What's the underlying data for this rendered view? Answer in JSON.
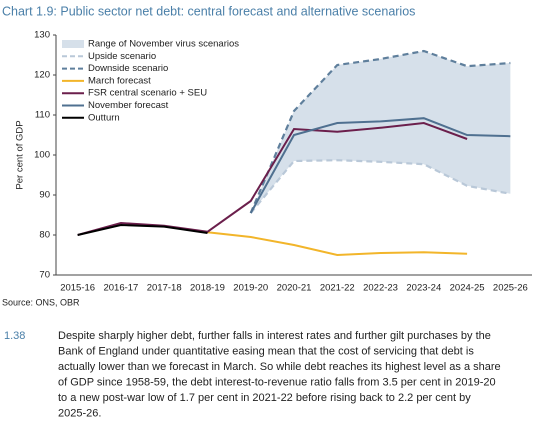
{
  "chart_data": {
    "type": "line",
    "title": "Chart 1.9: Public sector net debt: central forecast and alternative scenarios",
    "y_label": "Per cent of GDP",
    "categories": [
      "2015-16",
      "2016-17",
      "2017-18",
      "2018-19",
      "2019-20",
      "2020-21",
      "2021-22",
      "2022-23",
      "2023-24",
      "2024-25",
      "2025-26"
    ],
    "ylim": [
      70,
      130
    ],
    "yticks": [
      70,
      80,
      90,
      100,
      110,
      120,
      130
    ],
    "series": [
      {
        "name": "Range of November virus scenarios",
        "color": "#d6e0ea"
      },
      {
        "name": "Upside scenario",
        "color": "#b9c8d8",
        "dash": true,
        "values": [
          null,
          null,
          null,
          null,
          85.5,
          98.5,
          98.7,
          98.3,
          97.7,
          92.3,
          90.3
        ]
      },
      {
        "name": "Downside scenario",
        "color": "#5f7f9c",
        "dash": true,
        "values": [
          null,
          null,
          null,
          null,
          85.5,
          111,
          122.5,
          124,
          126,
          122.2,
          123
        ]
      },
      {
        "name": "March forecast",
        "color": "#f2b52a",
        "values": [
          null,
          null,
          null,
          80.7,
          79.5,
          77.5,
          75,
          75.5,
          75.7,
          75.3,
          null
        ]
      },
      {
        "name": "FSR central scenario + SEU",
        "color": "#6b1f4c",
        "values": [
          80,
          83,
          82.3,
          80.8,
          88.5,
          106.5,
          105.8,
          106.8,
          108,
          104,
          null
        ]
      },
      {
        "name": "November forecast",
        "color": "#4f7090",
        "values": [
          null,
          null,
          null,
          null,
          85.5,
          105,
          108,
          108.4,
          109.2,
          105,
          104.7
        ]
      },
      {
        "name": "Outturn",
        "color": "#000000",
        "values": [
          80,
          82.5,
          82.1,
          80.5,
          null,
          null,
          null,
          null,
          null,
          null,
          null
        ]
      }
    ]
  },
  "source": "Source: ONS, OBR",
  "paragraph": {
    "number": "1.38",
    "lines": [
      "Despite sharply higher debt, further falls in interest rates and further gilt purchases by the",
      "Bank of England under quantitative easing mean that the cost of servicing that debt is",
      "actually lower than we forecast in March. So while debt reaches its highest level as a share",
      "of GDP since 1958-59, the debt interest-to-revenue ratio falls from 3.5 per cent in 2019-20",
      "to a new post-war low of 1.7 per cent in 2021-22 before rising back to 2.2 per cent by",
      "2025-26."
    ]
  }
}
